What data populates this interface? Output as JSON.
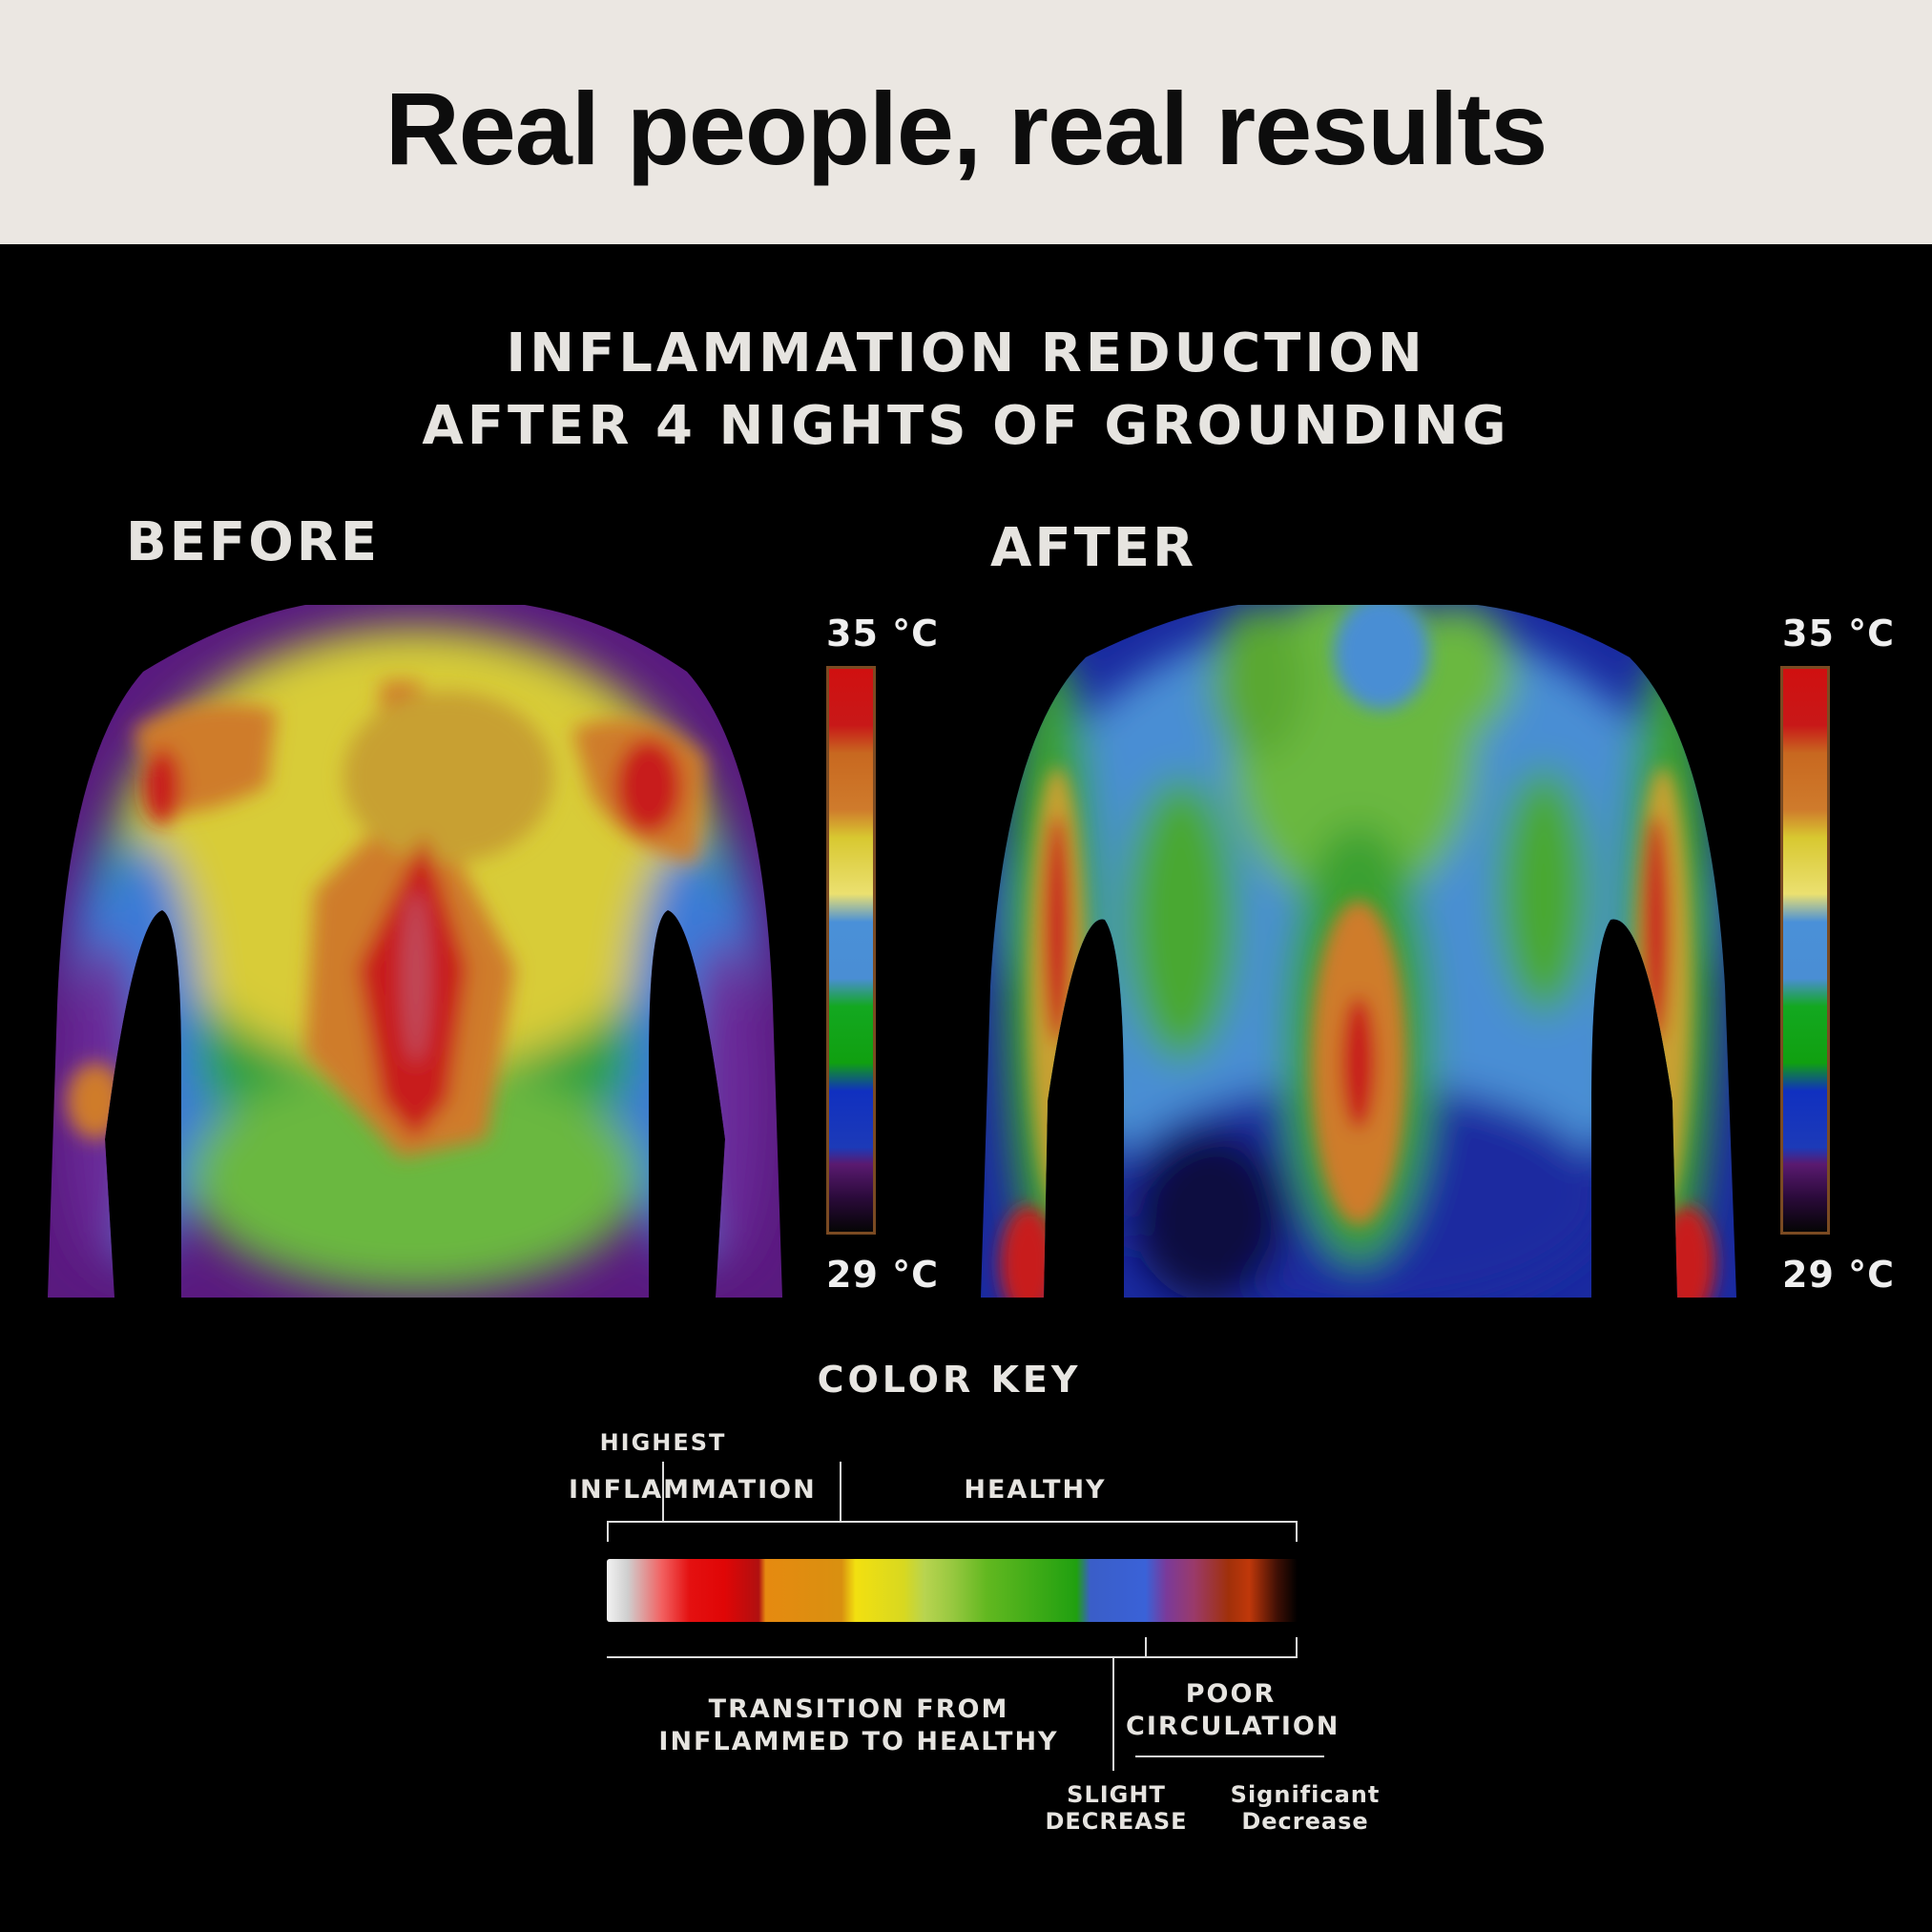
{
  "header": {
    "title": "Real people, real results"
  },
  "subtitle": {
    "line1": "INFLAMMATION REDUCTION",
    "line2": "AFTER 4 NIGHTS OF GROUNDING"
  },
  "before": {
    "label": "BEFORE",
    "scale_max": "35 °C",
    "scale_min": "29 °C"
  },
  "after": {
    "label": "AFTER",
    "scale_max": "35 °C",
    "scale_min": "29 °C"
  },
  "color_key": {
    "title": "COLOR KEY",
    "highest": "HIGHEST",
    "inflammation": "INFLAMMATION",
    "healthy": "HEALTHY",
    "transition_line1": "TRANSITION FROM",
    "transition_line2": "INFLAMMED TO HEALTHY",
    "poor_line1": "POOR",
    "poor_line2": "CIRCULATION",
    "slight_line1": "SLIGHT",
    "slight_line2": "DECREASE",
    "significant_line1": "Significant",
    "significant_line2": "Decrease"
  },
  "colors": {
    "header_bg": "#ebe7e2",
    "background": "#000000",
    "hot": "#d01010",
    "warm": "#cf7b2c",
    "mid": "#ebe070",
    "cool": "#4a90d8",
    "healthy_green": "#10a010",
    "cold_blue": "#1030c0",
    "coldest": "#2a0a3a"
  }
}
